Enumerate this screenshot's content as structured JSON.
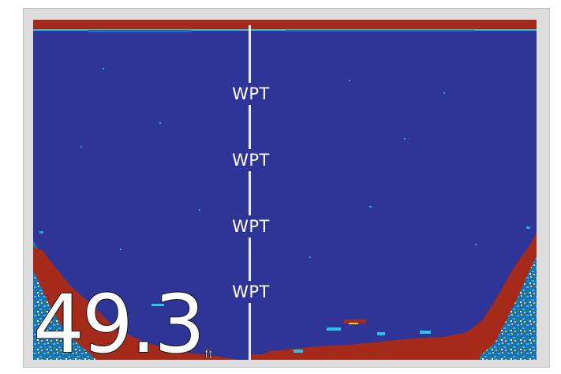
{
  "sonar": {
    "colors": {
      "water": "#2f3596",
      "strong_return": "#a52a1a",
      "bottom_speckle": [
        "#23c6e8",
        "#e8d31a",
        "#1a9a63",
        "#ffffff"
      ]
    },
    "waypoints": [
      "WPT",
      "WPT",
      "WPT",
      "WPT"
    ],
    "depth": {
      "value": "49.3",
      "unit": "ft"
    }
  }
}
